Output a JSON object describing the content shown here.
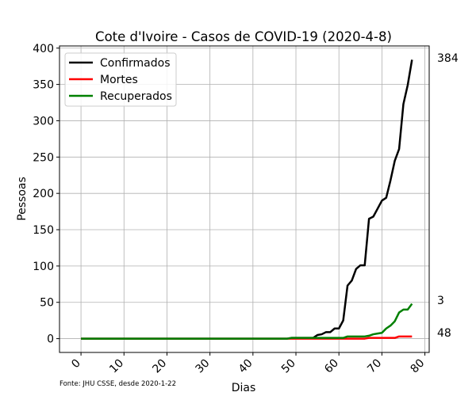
{
  "chart_data": {
    "type": "line",
    "title": "Cote d'Ivoire - Casos de COVID-19 (2020-4-8)",
    "xlabel": "Dias",
    "ylabel": "Pessoas",
    "source_note": "Fonte: JHU CSSE, desde 2020-1-22",
    "xlim": [
      -5,
      81
    ],
    "ylim": [
      -19,
      403
    ],
    "xticks": [
      0,
      10,
      20,
      30,
      40,
      50,
      60,
      70,
      80
    ],
    "yticks": [
      0,
      50,
      100,
      150,
      200,
      250,
      300,
      350,
      400
    ],
    "grid": true,
    "legend_position": "top-left",
    "x": [
      0,
      1,
      2,
      3,
      4,
      5,
      6,
      7,
      8,
      9,
      10,
      11,
      12,
      13,
      14,
      15,
      16,
      17,
      18,
      19,
      20,
      21,
      22,
      23,
      24,
      25,
      26,
      27,
      28,
      29,
      30,
      31,
      32,
      33,
      34,
      35,
      36,
      37,
      38,
      39,
      40,
      41,
      42,
      43,
      44,
      45,
      46,
      47,
      48,
      49,
      50,
      51,
      52,
      53,
      54,
      55,
      56,
      57,
      58,
      59,
      60,
      61,
      62,
      63,
      64,
      65,
      66,
      67,
      68,
      69,
      70,
      71,
      72,
      73,
      74,
      75,
      76,
      77
    ],
    "series": [
      {
        "name": "Confirmados",
        "color": "#000000",
        "end_label": "384",
        "values": [
          0,
          0,
          0,
          0,
          0,
          0,
          0,
          0,
          0,
          0,
          0,
          0,
          0,
          0,
          0,
          0,
          0,
          0,
          0,
          0,
          0,
          0,
          0,
          0,
          0,
          0,
          0,
          0,
          0,
          0,
          0,
          0,
          0,
          0,
          0,
          0,
          0,
          0,
          0,
          0,
          0,
          0,
          0,
          0,
          0,
          0,
          0,
          0,
          0,
          1,
          1,
          1,
          1,
          1,
          1,
          5,
          6,
          9,
          9,
          14,
          14,
          25,
          73,
          80,
          96,
          101,
          101,
          165,
          168,
          179,
          190,
          194,
          218,
          245,
          261,
          323,
          349,
          384
        ]
      },
      {
        "name": "Mortes",
        "color": "#ff0000",
        "end_label": "3",
        "values": [
          0,
          0,
          0,
          0,
          0,
          0,
          0,
          0,
          0,
          0,
          0,
          0,
          0,
          0,
          0,
          0,
          0,
          0,
          0,
          0,
          0,
          0,
          0,
          0,
          0,
          0,
          0,
          0,
          0,
          0,
          0,
          0,
          0,
          0,
          0,
          0,
          0,
          0,
          0,
          0,
          0,
          0,
          0,
          0,
          0,
          0,
          0,
          0,
          0,
          0,
          0,
          0,
          0,
          0,
          0,
          0,
          0,
          0,
          0,
          0,
          0,
          0,
          0,
          0,
          0,
          0,
          0,
          1,
          1,
          1,
          1,
          1,
          1,
          1,
          3,
          3,
          3,
          3
        ]
      },
      {
        "name": "Recuperados",
        "color": "#008000",
        "end_label": "48",
        "values": [
          0,
          0,
          0,
          0,
          0,
          0,
          0,
          0,
          0,
          0,
          0,
          0,
          0,
          0,
          0,
          0,
          0,
          0,
          0,
          0,
          0,
          0,
          0,
          0,
          0,
          0,
          0,
          0,
          0,
          0,
          0,
          0,
          0,
          0,
          0,
          0,
          0,
          0,
          0,
          0,
          0,
          0,
          0,
          0,
          0,
          0,
          0,
          0,
          0,
          1,
          1,
          1,
          1,
          1,
          1,
          1,
          1,
          1,
          1,
          1,
          1,
          1,
          3,
          3,
          3,
          3,
          3,
          4,
          6,
          7,
          8,
          14,
          18,
          24,
          36,
          40,
          40,
          48
        ]
      }
    ]
  }
}
